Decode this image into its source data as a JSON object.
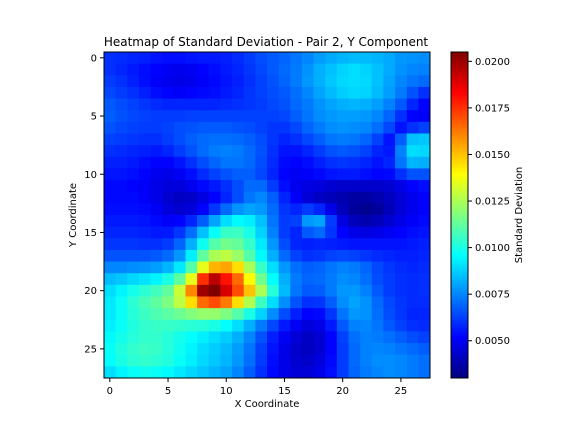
{
  "chart_data": {
    "type": "heatmap",
    "title": "Heatmap of Standard Deviation - Pair 2, Y Component",
    "xlabel": "X Coordinate",
    "ylabel": "Y Coordinate",
    "colorbar_label": "Standard Deviation",
    "colormap": "jet",
    "grid": false,
    "x_ticks": [
      0,
      5,
      10,
      15,
      20,
      25
    ],
    "y_ticks": [
      0,
      5,
      10,
      15,
      20,
      25
    ],
    "colorbar_ticks": [
      0.005,
      0.0075,
      0.01,
      0.0125,
      0.015,
      0.0175,
      0.02
    ],
    "colorbar_tick_labels": [
      "0.0050",
      "0.0075",
      "0.0100",
      "0.0125",
      "0.0150",
      "0.0175",
      "0.0200"
    ],
    "vmin": 0.003,
    "vmax": 0.0205,
    "n_rows": 28,
    "n_cols": 28,
    "description_rows_note": "",
    "rows": [
      [
        0.006,
        0.0059,
        0.0058,
        0.0057,
        0.0055,
        0.0054,
        0.0054,
        0.0055,
        0.0056,
        0.0056,
        0.0057,
        0.0059,
        0.0062,
        0.0065,
        0.0067,
        0.0069,
        0.0072,
        0.0075,
        0.0079,
        0.0081,
        0.0083,
        0.0084,
        0.0084,
        0.0083,
        0.0081,
        0.0078,
        0.0077,
        0.0076
      ],
      [
        0.006,
        0.0058,
        0.0056,
        0.0054,
        0.0052,
        0.005,
        0.0049,
        0.005,
        0.0052,
        0.0054,
        0.0056,
        0.0058,
        0.0061,
        0.0064,
        0.0067,
        0.007,
        0.0073,
        0.0077,
        0.0082,
        0.0085,
        0.0088,
        0.009,
        0.0088,
        0.0085,
        0.0081,
        0.0077,
        0.0075,
        0.0074
      ],
      [
        0.0062,
        0.006,
        0.0057,
        0.0054,
        0.0051,
        0.0049,
        0.0048,
        0.0049,
        0.0051,
        0.0053,
        0.0055,
        0.0057,
        0.006,
        0.0063,
        0.0066,
        0.0069,
        0.0073,
        0.0078,
        0.0082,
        0.0086,
        0.0089,
        0.009,
        0.0089,
        0.0085,
        0.008,
        0.0075,
        0.0072,
        0.007
      ],
      [
        0.0064,
        0.0062,
        0.006,
        0.0057,
        0.0054,
        0.0052,
        0.0051,
        0.0052,
        0.0053,
        0.0054,
        0.0056,
        0.0058,
        0.0061,
        0.0063,
        0.0065,
        0.0067,
        0.0071,
        0.0075,
        0.008,
        0.0084,
        0.0087,
        0.0089,
        0.0088,
        0.0084,
        0.0079,
        0.0073,
        0.0066,
        0.006
      ],
      [
        0.0067,
        0.0065,
        0.0063,
        0.0061,
        0.0059,
        0.0058,
        0.0058,
        0.0058,
        0.0058,
        0.0058,
        0.0059,
        0.006,
        0.0061,
        0.0062,
        0.0064,
        0.0066,
        0.007,
        0.0073,
        0.0077,
        0.008,
        0.0082,
        0.0083,
        0.0082,
        0.0079,
        0.0074,
        0.0067,
        0.0058,
        0.0052
      ],
      [
        0.0068,
        0.0066,
        0.0064,
        0.0063,
        0.0062,
        0.0062,
        0.0062,
        0.0063,
        0.0063,
        0.0063,
        0.0063,
        0.0063,
        0.0063,
        0.0063,
        0.0063,
        0.0064,
        0.0068,
        0.0072,
        0.0076,
        0.0078,
        0.0079,
        0.0079,
        0.0078,
        0.0075,
        0.0069,
        0.006,
        0.0052,
        0.0051
      ],
      [
        0.0066,
        0.0064,
        0.0063,
        0.0062,
        0.0062,
        0.0063,
        0.0065,
        0.0066,
        0.0067,
        0.0067,
        0.0067,
        0.0066,
        0.0065,
        0.0063,
        0.0061,
        0.0061,
        0.0064,
        0.0069,
        0.0073,
        0.0076,
        0.0077,
        0.0076,
        0.0075,
        0.0071,
        0.0064,
        0.0055,
        0.006,
        0.0063
      ],
      [
        0.0063,
        0.0062,
        0.0061,
        0.006,
        0.006,
        0.0062,
        0.0065,
        0.0068,
        0.007,
        0.0071,
        0.0071,
        0.007,
        0.0068,
        0.0065,
        0.0061,
        0.0058,
        0.006,
        0.0064,
        0.0068,
        0.0072,
        0.0073,
        0.0072,
        0.0069,
        0.0063,
        0.0055,
        0.0068,
        0.0085,
        0.0086
      ],
      [
        0.006,
        0.0059,
        0.0058,
        0.0057,
        0.0056,
        0.0058,
        0.0062,
        0.0066,
        0.007,
        0.0073,
        0.0074,
        0.0073,
        0.007,
        0.0066,
        0.006,
        0.0055,
        0.0055,
        0.0058,
        0.0062,
        0.0066,
        0.0067,
        0.0066,
        0.0063,
        0.0058,
        0.0056,
        0.0074,
        0.009,
        0.0089
      ],
      [
        0.0057,
        0.0057,
        0.0056,
        0.0054,
        0.0052,
        0.0052,
        0.0055,
        0.006,
        0.0065,
        0.0069,
        0.0072,
        0.0072,
        0.007,
        0.0065,
        0.0059,
        0.0053,
        0.0052,
        0.0054,
        0.0057,
        0.006,
        0.0061,
        0.006,
        0.0058,
        0.0055,
        0.0058,
        0.0072,
        0.0083,
        0.0082
      ],
      [
        0.0055,
        0.0055,
        0.0054,
        0.0052,
        0.0049,
        0.0048,
        0.005,
        0.0054,
        0.0059,
        0.0063,
        0.0066,
        0.0068,
        0.0068,
        0.0064,
        0.0058,
        0.0052,
        0.005,
        0.0051,
        0.0053,
        0.0055,
        0.0056,
        0.0056,
        0.0054,
        0.0052,
        0.0053,
        0.006,
        0.0066,
        0.0066
      ],
      [
        0.0053,
        0.0053,
        0.0052,
        0.0051,
        0.0048,
        0.0046,
        0.0046,
        0.0049,
        0.0053,
        0.0056,
        0.006,
        0.0065,
        0.007,
        0.007,
        0.0062,
        0.0054,
        0.0049,
        0.0047,
        0.0046,
        0.0044,
        0.0043,
        0.0043,
        0.0043,
        0.0043,
        0.0044,
        0.0048,
        0.0052,
        0.0054
      ],
      [
        0.0053,
        0.0053,
        0.0053,
        0.0051,
        0.0048,
        0.0044,
        0.0042,
        0.0043,
        0.0047,
        0.0052,
        0.0058,
        0.0065,
        0.0072,
        0.0075,
        0.0068,
        0.0058,
        0.0051,
        0.0045,
        0.0042,
        0.004,
        0.0038,
        0.0036,
        0.0036,
        0.0038,
        0.0041,
        0.0045,
        0.0049,
        0.0052
      ],
      [
        0.0054,
        0.0054,
        0.0054,
        0.0053,
        0.005,
        0.0046,
        0.0044,
        0.0046,
        0.0052,
        0.0061,
        0.007,
        0.0077,
        0.008,
        0.0078,
        0.007,
        0.0061,
        0.0058,
        0.0062,
        0.0058,
        0.0048,
        0.004,
        0.0035,
        0.0033,
        0.0035,
        0.004,
        0.0045,
        0.0049,
        0.0052
      ],
      [
        0.0056,
        0.0056,
        0.0056,
        0.0055,
        0.0053,
        0.0051,
        0.0052,
        0.0058,
        0.0068,
        0.008,
        0.009,
        0.0095,
        0.0093,
        0.0085,
        0.0072,
        0.0062,
        0.0063,
        0.0078,
        0.008,
        0.0062,
        0.0047,
        0.004,
        0.0038,
        0.004,
        0.0044,
        0.0048,
        0.0051,
        0.0053
      ],
      [
        0.0058,
        0.0058,
        0.0058,
        0.0057,
        0.0056,
        0.0056,
        0.0061,
        0.0071,
        0.0085,
        0.0097,
        0.0105,
        0.0106,
        0.01,
        0.0088,
        0.0074,
        0.0062,
        0.0058,
        0.0067,
        0.007,
        0.0061,
        0.0052,
        0.0048,
        0.0047,
        0.0048,
        0.005,
        0.0052,
        0.0054,
        0.0055
      ],
      [
        0.0061,
        0.0061,
        0.0061,
        0.006,
        0.006,
        0.0062,
        0.0069,
        0.0082,
        0.0098,
        0.011,
        0.0115,
        0.0113,
        0.0105,
        0.0092,
        0.0078,
        0.0065,
        0.0058,
        0.0057,
        0.0058,
        0.0057,
        0.0056,
        0.0055,
        0.0055,
        0.0055,
        0.0055,
        0.0055,
        0.0056,
        0.0057
      ],
      [
        0.0066,
        0.0066,
        0.0066,
        0.0066,
        0.0067,
        0.007,
        0.0078,
        0.0093,
        0.0112,
        0.0125,
        0.0128,
        0.0122,
        0.011,
        0.0095,
        0.0082,
        0.007,
        0.0063,
        0.006,
        0.0061,
        0.0063,
        0.0064,
        0.0063,
        0.0061,
        0.0059,
        0.0058,
        0.0057,
        0.0057,
        0.0058
      ],
      [
        0.0075,
        0.0075,
        0.0076,
        0.0077,
        0.0079,
        0.0083,
        0.0092,
        0.011,
        0.0135,
        0.0152,
        0.0155,
        0.0145,
        0.0125,
        0.0105,
        0.009,
        0.0078,
        0.0071,
        0.0068,
        0.0069,
        0.0072,
        0.0074,
        0.0073,
        0.0069,
        0.0064,
        0.0061,
        0.0059,
        0.0058,
        0.0059
      ],
      [
        0.0084,
        0.0086,
        0.0089,
        0.0091,
        0.0094,
        0.01,
        0.0112,
        0.0135,
        0.0175,
        0.0195,
        0.018,
        0.0165,
        0.014,
        0.0115,
        0.0096,
        0.0082,
        0.0073,
        0.0069,
        0.007,
        0.0073,
        0.0076,
        0.0075,
        0.0071,
        0.0065,
        0.0062,
        0.006,
        0.0059,
        0.006
      ],
      [
        0.009,
        0.0094,
        0.0099,
        0.0103,
        0.0107,
        0.0112,
        0.013,
        0.016,
        0.02,
        0.0205,
        0.019,
        0.017,
        0.015,
        0.0125,
        0.0102,
        0.0084,
        0.0072,
        0.0067,
        0.0068,
        0.0073,
        0.0078,
        0.0078,
        0.0074,
        0.0067,
        0.0062,
        0.006,
        0.0059,
        0.006
      ],
      [
        0.0092,
        0.0097,
        0.0103,
        0.0108,
        0.0112,
        0.0117,
        0.0128,
        0.0145,
        0.0165,
        0.017,
        0.0162,
        0.0145,
        0.0126,
        0.0106,
        0.009,
        0.0076,
        0.0066,
        0.006,
        0.0061,
        0.0068,
        0.0076,
        0.008,
        0.0077,
        0.007,
        0.0064,
        0.0061,
        0.0059,
        0.0059
      ],
      [
        0.0092,
        0.0097,
        0.0102,
        0.0106,
        0.0109,
        0.0111,
        0.0114,
        0.0118,
        0.0121,
        0.0121,
        0.0117,
        0.011,
        0.01,
        0.0088,
        0.0076,
        0.0065,
        0.0057,
        0.0052,
        0.0053,
        0.0061,
        0.0072,
        0.0078,
        0.0077,
        0.0071,
        0.0065,
        0.0061,
        0.0058,
        0.0058
      ],
      [
        0.0093,
        0.0097,
        0.0101,
        0.0104,
        0.0105,
        0.0105,
        0.0104,
        0.0103,
        0.0102,
        0.01,
        0.0096,
        0.009,
        0.0082,
        0.0073,
        0.0064,
        0.0056,
        0.005,
        0.0046,
        0.0048,
        0.0056,
        0.0067,
        0.0074,
        0.0075,
        0.0072,
        0.0067,
        0.0063,
        0.006,
        0.0059
      ],
      [
        0.0095,
        0.0099,
        0.0102,
        0.0104,
        0.0104,
        0.0102,
        0.0099,
        0.0096,
        0.0093,
        0.009,
        0.0087,
        0.0082,
        0.0075,
        0.0066,
        0.0057,
        0.005,
        0.0045,
        0.0042,
        0.0044,
        0.0052,
        0.0063,
        0.0071,
        0.0074,
        0.0073,
        0.0071,
        0.0068,
        0.0065,
        0.0063
      ],
      [
        0.0097,
        0.0101,
        0.0104,
        0.0106,
        0.0105,
        0.0102,
        0.0098,
        0.0094,
        0.009,
        0.0087,
        0.0084,
        0.0079,
        0.0072,
        0.0063,
        0.0055,
        0.0048,
        0.0043,
        0.0041,
        0.0044,
        0.0052,
        0.0062,
        0.007,
        0.0074,
        0.0075,
        0.0074,
        0.0072,
        0.007,
        0.0068
      ],
      [
        0.0096,
        0.01,
        0.0103,
        0.0104,
        0.0103,
        0.0101,
        0.0097,
        0.0093,
        0.0089,
        0.0086,
        0.0083,
        0.0078,
        0.0071,
        0.0062,
        0.0054,
        0.0048,
        0.0044,
        0.0043,
        0.0046,
        0.0053,
        0.0062,
        0.007,
        0.0074,
        0.0076,
        0.0076,
        0.0075,
        0.0073,
        0.0071
      ],
      [
        0.009,
        0.0094,
        0.0097,
        0.0098,
        0.0097,
        0.0095,
        0.0092,
        0.0089,
        0.0086,
        0.0083,
        0.008,
        0.0075,
        0.0068,
        0.006,
        0.0053,
        0.0048,
        0.0045,
        0.0045,
        0.0048,
        0.0054,
        0.0062,
        0.0069,
        0.0073,
        0.0075,
        0.0076,
        0.0075,
        0.0073,
        0.0071
      ]
    ]
  }
}
